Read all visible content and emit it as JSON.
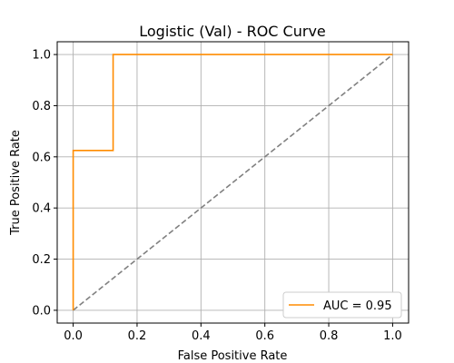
{
  "chart_data": {
    "type": "line",
    "title": "Logistic (Val) - ROC Curve",
    "xlabel": "False Positive Rate",
    "ylabel": "True Positive Rate",
    "xlim": [
      -0.05,
      1.05
    ],
    "ylim": [
      -0.05,
      1.05
    ],
    "xticks": [
      "0.0",
      "0.2",
      "0.4",
      "0.6",
      "0.8",
      "1.0"
    ],
    "yticks": [
      "0.0",
      "0.2",
      "0.4",
      "0.6",
      "0.8",
      "1.0"
    ],
    "grid": true,
    "legend_position": "lower-right",
    "series": [
      {
        "name": "AUC = 0.95",
        "color": "#ff8c00",
        "style": "solid",
        "x": [
          0.0,
          0.0,
          0.0,
          0.125,
          0.125,
          1.0
        ],
        "y": [
          0.0,
          0.625,
          0.625,
          0.625,
          1.0,
          1.0
        ]
      },
      {
        "color": "#808080",
        "style": "dashed",
        "x": [
          0.0,
          1.0
        ],
        "y": [
          0.0,
          1.0
        ]
      }
    ]
  }
}
